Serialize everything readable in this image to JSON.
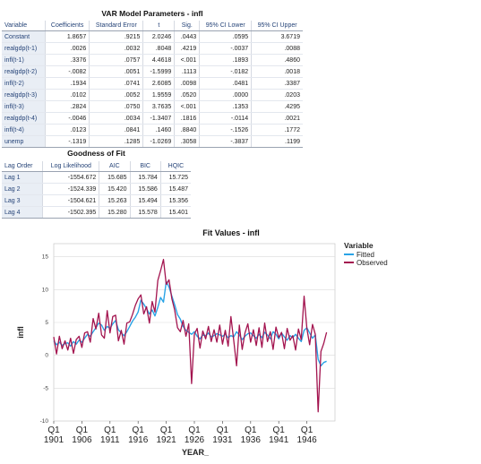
{
  "params_table": {
    "title": "VAR Model Parameters - infl",
    "headers": [
      "Variable",
      "Coefficients",
      "Standard Error",
      "t",
      "Sig.",
      "95% CI Lower",
      "95% CI Upper"
    ],
    "rows": [
      [
        "Constant",
        "1.8657",
        ".9215",
        "2.0246",
        ".0443",
        ".0595",
        "3.6719"
      ],
      [
        "realgdp(t-1)",
        ".0026",
        ".0032",
        ".8048",
        ".4219",
        "-.0037",
        ".0088"
      ],
      [
        "infl(t-1)",
        ".3376",
        ".0757",
        "4.4618",
        "<.001",
        ".1893",
        ".4860"
      ],
      [
        "realgdp(t-2)",
        "-.0082",
        ".0051",
        "-1.5999",
        ".1113",
        "-.0182",
        ".0018"
      ],
      [
        "infl(t-2)",
        ".1934",
        ".0741",
        "2.6085",
        ".0098",
        ".0481",
        ".3387"
      ],
      [
        "realgdp(t-3)",
        ".0102",
        ".0052",
        "1.9559",
        ".0520",
        ".0000",
        ".0203"
      ],
      [
        "infl(t-3)",
        ".2824",
        ".0750",
        "3.7635",
        "<.001",
        ".1353",
        ".4295"
      ],
      [
        "realgdp(t-4)",
        "-.0046",
        ".0034",
        "-1.3407",
        ".1816",
        "-.0114",
        ".0021"
      ],
      [
        "infl(t-4)",
        ".0123",
        ".0841",
        ".1460",
        ".8840",
        "-.1526",
        ".1772"
      ],
      [
        "unemp",
        "-.1319",
        ".1285",
        "-1.0269",
        ".3058",
        "-.3837",
        ".1199"
      ]
    ]
  },
  "fit_table": {
    "title": "Goodness of Fit",
    "headers": [
      "Lag Order",
      "Log Likelihood",
      "AIC",
      "BIC",
      "HQIC"
    ],
    "rows": [
      [
        "Lag 1",
        "-1554.672",
        "15.685",
        "15.784",
        "15.725"
      ],
      [
        "Lag 2",
        "-1524.339",
        "15.420",
        "15.586",
        "15.487"
      ],
      [
        "Lag 3",
        "-1504.621",
        "15.263",
        "15.494",
        "15.356"
      ],
      [
        "Lag 4",
        "-1502.395",
        "15.280",
        "15.578",
        "15.401"
      ]
    ]
  },
  "chart_data": {
    "type": "line",
    "title": "Fit Values - infl",
    "xlabel": "YEAR_",
    "ylabel": "infl",
    "ylim": [
      -10,
      17
    ],
    "yticks": [
      -10,
      -5,
      0,
      5,
      10,
      15
    ],
    "xlim": [
      1901,
      1951
    ],
    "xticks": [
      {
        "x": 1901,
        "label": "Q1 1901"
      },
      {
        "x": 1906,
        "label": "Q1 1906"
      },
      {
        "x": 1911,
        "label": "Q1 1911"
      },
      {
        "x": 1916,
        "label": "Q1 1916"
      },
      {
        "x": 1921,
        "label": "Q1 1921"
      },
      {
        "x": 1926,
        "label": "Q1 1926"
      },
      {
        "x": 1931,
        "label": "Q1 1931"
      },
      {
        "x": 1936,
        "label": "Q1 1936"
      },
      {
        "x": 1941,
        "label": "Q1 1941"
      },
      {
        "x": 1946,
        "label": "Q1 1946"
      }
    ],
    "grid": true,
    "legend": {
      "title": "Variable",
      "position": "right"
    },
    "series": [
      {
        "name": "Fitted",
        "color": "#29a3e6",
        "x": [
          1901.0,
          1901.5,
          1902.0,
          1902.5,
          1903.0,
          1903.5,
          1904.0,
          1904.5,
          1905.0,
          1905.5,
          1906.0,
          1906.5,
          1907.0,
          1907.5,
          1908.0,
          1908.5,
          1909.0,
          1909.5,
          1910.0,
          1910.5,
          1911.0,
          1911.5,
          1912.0,
          1912.5,
          1913.0,
          1913.5,
          1914.0,
          1914.5,
          1915.0,
          1915.5,
          1916.0,
          1916.5,
          1917.0,
          1917.5,
          1918.0,
          1918.5,
          1919.0,
          1919.5,
          1920.0,
          1920.5,
          1921.0,
          1921.5,
          1922.0,
          1922.5,
          1923.0,
          1923.5,
          1924.0,
          1924.5,
          1925.0,
          1925.5,
          1926.0,
          1926.5,
          1927.0,
          1927.5,
          1928.0,
          1928.5,
          1929.0,
          1929.5,
          1930.0,
          1930.5,
          1931.0,
          1931.5,
          1932.0,
          1932.5,
          1933.0,
          1933.5,
          1934.0,
          1934.5,
          1935.0,
          1935.5,
          1936.0,
          1936.5,
          1937.0,
          1937.5,
          1938.0,
          1938.5,
          1939.0,
          1939.5,
          1940.0,
          1940.5,
          1941.0,
          1941.5,
          1942.0,
          1942.5,
          1943.0,
          1943.5,
          1944.0,
          1944.5,
          1945.0,
          1945.5,
          1946.0,
          1946.5,
          1947.0,
          1947.5,
          1948.0,
          1948.5,
          1949.0,
          1949.5
        ],
        "y": [
          2.2,
          1.6,
          2.0,
          1.5,
          1.8,
          1.9,
          1.4,
          2.1,
          1.7,
          2.3,
          2.0,
          2.6,
          3.2,
          2.9,
          3.6,
          4.2,
          4.9,
          4.6,
          3.8,
          4.4,
          4.1,
          4.8,
          5.3,
          3.9,
          3.4,
          3.0,
          3.6,
          4.4,
          5.2,
          5.8,
          6.6,
          8.4,
          7.8,
          7.1,
          6.3,
          6.9,
          6.0,
          7.3,
          8.8,
          8.1,
          11.2,
          10.4,
          9.0,
          7.7,
          6.2,
          5.5,
          4.4,
          3.8,
          3.5,
          3.2,
          3.6,
          2.9,
          2.5,
          3.1,
          3.0,
          3.4,
          2.8,
          3.0,
          3.3,
          3.1,
          2.9,
          3.2,
          2.7,
          3.0,
          2.8,
          3.6,
          3.1,
          2.4,
          2.9,
          3.3,
          3.4,
          3.0,
          2.6,
          3.2,
          2.7,
          3.5,
          3.1,
          2.5,
          3.6,
          3.2,
          2.5,
          3.4,
          2.8,
          2.3,
          3.0,
          2.7,
          3.2,
          2.6,
          2.1,
          3.8,
          4.2,
          3.4,
          2.6,
          3.1,
          -0.6,
          -1.6,
          -1.1,
          -0.9
        ]
      },
      {
        "name": "Observed",
        "color": "#a3144f",
        "x": [
          1901.0,
          1901.5,
          1902.0,
          1902.5,
          1903.0,
          1903.5,
          1904.0,
          1904.5,
          1905.0,
          1905.5,
          1906.0,
          1906.5,
          1907.0,
          1907.5,
          1908.0,
          1908.5,
          1909.0,
          1909.5,
          1910.0,
          1910.5,
          1911.0,
          1911.5,
          1912.0,
          1912.5,
          1913.0,
          1913.5,
          1914.0,
          1914.5,
          1915.0,
          1915.5,
          1916.0,
          1916.5,
          1917.0,
          1917.5,
          1918.0,
          1918.5,
          1919.0,
          1919.5,
          1920.0,
          1920.5,
          1921.0,
          1921.5,
          1922.0,
          1922.5,
          1923.0,
          1923.5,
          1924.0,
          1924.5,
          1925.0,
          1925.5,
          1926.0,
          1926.5,
          1927.0,
          1927.5,
          1928.0,
          1928.5,
          1929.0,
          1929.5,
          1930.0,
          1930.5,
          1931.0,
          1931.5,
          1932.0,
          1932.5,
          1933.0,
          1933.5,
          1934.0,
          1934.5,
          1935.0,
          1935.5,
          1936.0,
          1936.5,
          1937.0,
          1937.5,
          1938.0,
          1938.5,
          1939.0,
          1939.5,
          1940.0,
          1940.5,
          1941.0,
          1941.5,
          1942.0,
          1942.5,
          1943.0,
          1943.5,
          1944.0,
          1944.5,
          1945.0,
          1945.5,
          1946.0,
          1946.5,
          1947.0,
          1947.5,
          1948.0,
          1948.5,
          1949.0,
          1949.5
        ],
        "y": [
          2.8,
          0.2,
          2.9,
          1.0,
          2.2,
          0.8,
          2.6,
          0.3,
          2.4,
          2.9,
          1.2,
          3.4,
          3.6,
          2.0,
          5.6,
          4.0,
          6.4,
          3.1,
          2.6,
          6.8,
          3.4,
          5.9,
          6.1,
          2.2,
          3.8,
          1.7,
          4.9,
          5.1,
          6.2,
          7.6,
          8.6,
          9.2,
          6.3,
          7.4,
          4.9,
          8.2,
          6.6,
          11.4,
          12.9,
          14.6,
          10.8,
          11.5,
          8.6,
          6.9,
          4.2,
          3.6,
          5.3,
          2.9,
          4.8,
          -4.3,
          3.2,
          4.1,
          1.1,
          3.7,
          2.5,
          4.4,
          2.1,
          3.9,
          2.0,
          4.6,
          1.7,
          3.8,
          1.4,
          5.9,
          2.2,
          -1.6,
          4.6,
          0.9,
          3.4,
          4.8,
          2.0,
          3.9,
          1.5,
          4.2,
          1.2,
          4.9,
          2.1,
          3.6,
          0.9,
          4.3,
          2.7,
          3.5,
          1.0,
          4.1,
          2.3,
          3.0,
          0.8,
          4.0,
          2.4,
          9.0,
          4.1,
          1.6,
          4.7,
          3.2,
          -8.6,
          0.6,
          1.8,
          3.5
        ]
      }
    ]
  }
}
